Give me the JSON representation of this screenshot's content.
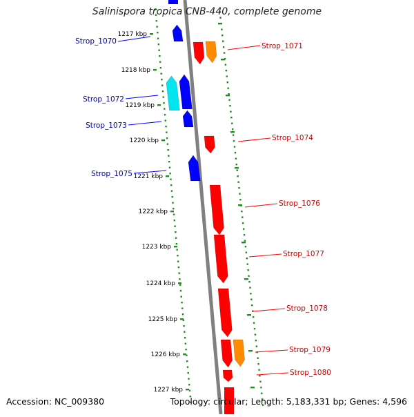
{
  "header": {
    "title": "Salinispora tropica CNB-440, complete genome"
  },
  "footer": {
    "accession": "Accession: NC_009380",
    "topology": "Topology: circular; Length: 5,183,331 bp; Genes: 4,596"
  },
  "colors": {
    "forward_gene": "#ff0000",
    "reverse_gene": "#0000ff",
    "reverse_gene_light": "#00e5ee",
    "forward_gene_alt": "#ff8c00",
    "forward_label": "#cc0000",
    "reverse_label": "#000099",
    "tick": "#228b22",
    "backbone": "#808080"
  },
  "ticks": [
    "1217 kbp",
    "1218 kbp",
    "1219 kbp",
    "1220 kbp",
    "1221 kbp",
    "1222 kbp",
    "1223 kbp",
    "1224 kbp",
    "1225 kbp",
    "1226 kbp",
    "1227 kbp"
  ],
  "left_genes": [
    {
      "label": "Strop_1070"
    },
    {
      "label": "Strop_1072"
    },
    {
      "label": "Strop_1073"
    },
    {
      "label": "Strop_1075"
    }
  ],
  "right_genes": [
    {
      "label": "Strop_1071"
    },
    {
      "label": "Strop_1074"
    },
    {
      "label": "Strop_1076"
    },
    {
      "label": "Strop_1077"
    },
    {
      "label": "Strop_1078"
    },
    {
      "label": "Strop_1079"
    },
    {
      "label": "Strop_1080"
    }
  ]
}
